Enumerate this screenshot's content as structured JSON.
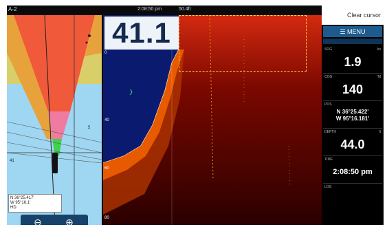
{
  "topbar": {
    "mode": "A-2",
    "clock": "2:08:50 pm",
    "zoom": "50.4ft"
  },
  "echo": {
    "depth": "41.1",
    "scale_top": "0",
    "scale_mid": "40",
    "scale_low": "60",
    "scale_bottom": "80",
    "colors": {
      "background": "#3a0000",
      "bottom": "#e85a00",
      "water": "#0a1a6e"
    }
  },
  "chart": {
    "coords_lat": "N 36°25.417'",
    "coords_lon": "W 95°16.1'",
    "coords_extra": "HD",
    "label_a": "41",
    "label_b": "5",
    "zoom_out_icon": "zoom-out-icon",
    "zoom_in_icon": "zoom-in-icon"
  },
  "databar": {
    "clear_cursor": "Clear cursor",
    "menu": "MENU",
    "tiles": [
      {
        "label": "SOG",
        "unit": "kn",
        "value": "1.9"
      },
      {
        "label": "COG",
        "unit": "°M",
        "value": "140"
      },
      {
        "label": "POS",
        "value_lat": "N 36°25.422'",
        "value_lon": "W 95°16.181'"
      },
      {
        "label": "DEPTH",
        "unit": "ft",
        "value": "44.0"
      },
      {
        "label": "TIME",
        "value": "2:08:50 pm"
      },
      {
        "label": "LOG",
        "value": ""
      }
    ]
  }
}
